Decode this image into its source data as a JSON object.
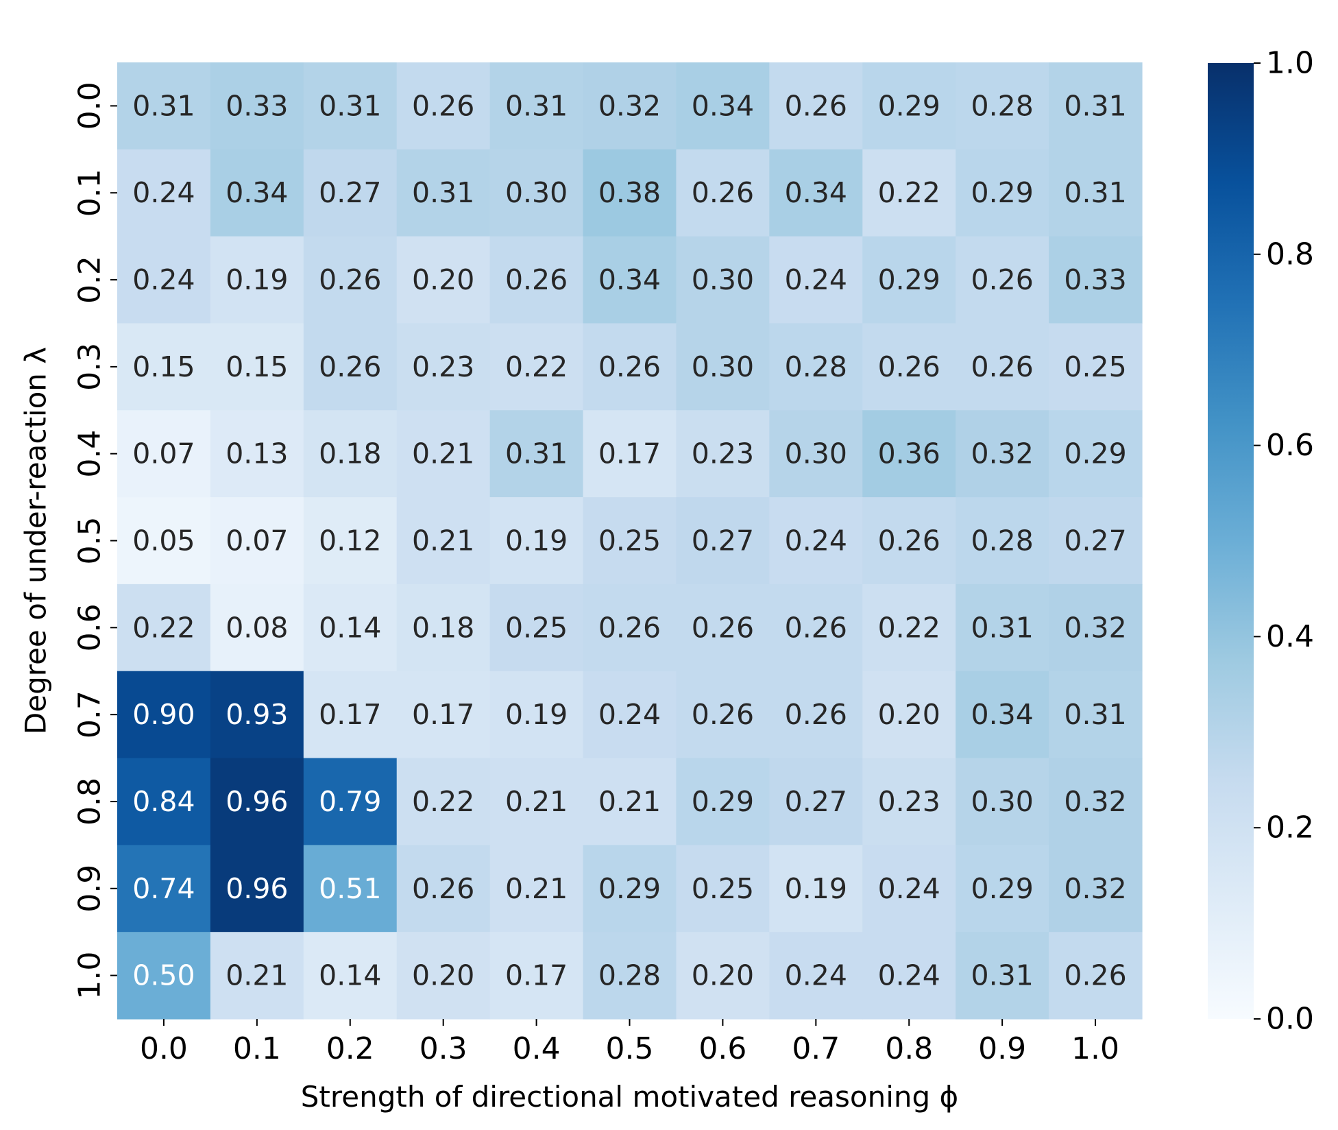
{
  "chart_data": {
    "type": "heatmap",
    "title": "",
    "xlabel": "Strength of directional motivated reasoning ϕ",
    "ylabel": "Degree of under-reaction λ",
    "x_categories": [
      "0.0",
      "0.1",
      "0.2",
      "0.3",
      "0.4",
      "0.5",
      "0.6",
      "0.7",
      "0.8",
      "0.9",
      "1.0"
    ],
    "y_categories": [
      "0.0",
      "0.1",
      "0.2",
      "0.3",
      "0.4",
      "0.5",
      "0.6",
      "0.7",
      "0.8",
      "0.9",
      "1.0"
    ],
    "values": [
      [
        0.31,
        0.33,
        0.31,
        0.26,
        0.31,
        0.32,
        0.34,
        0.26,
        0.29,
        0.28,
        0.31
      ],
      [
        0.24,
        0.34,
        0.27,
        0.31,
        0.3,
        0.38,
        0.26,
        0.34,
        0.22,
        0.29,
        0.31
      ],
      [
        0.24,
        0.19,
        0.26,
        0.2,
        0.26,
        0.34,
        0.3,
        0.24,
        0.29,
        0.26,
        0.33
      ],
      [
        0.15,
        0.15,
        0.26,
        0.23,
        0.22,
        0.26,
        0.3,
        0.28,
        0.26,
        0.26,
        0.25
      ],
      [
        0.07,
        0.13,
        0.18,
        0.21,
        0.31,
        0.17,
        0.23,
        0.3,
        0.36,
        0.32,
        0.29
      ],
      [
        0.05,
        0.07,
        0.12,
        0.21,
        0.19,
        0.25,
        0.27,
        0.24,
        0.26,
        0.28,
        0.27
      ],
      [
        0.22,
        0.08,
        0.14,
        0.18,
        0.25,
        0.26,
        0.26,
        0.26,
        0.22,
        0.31,
        0.32
      ],
      [
        0.9,
        0.93,
        0.17,
        0.17,
        0.19,
        0.24,
        0.26,
        0.26,
        0.2,
        0.34,
        0.31
      ],
      [
        0.84,
        0.96,
        0.79,
        0.22,
        0.21,
        0.21,
        0.29,
        0.27,
        0.23,
        0.3,
        0.32
      ],
      [
        0.74,
        0.96,
        0.51,
        0.26,
        0.21,
        0.29,
        0.25,
        0.19,
        0.24,
        0.29,
        0.32
      ],
      [
        0.5,
        0.21,
        0.14,
        0.2,
        0.17,
        0.28,
        0.2,
        0.24,
        0.24,
        0.31,
        0.26
      ]
    ],
    "value_format": "0.00",
    "colormap": "Blues",
    "colorbar": {
      "range": [
        0.0,
        1.0
      ],
      "ticks": [
        "0.0",
        "0.2",
        "0.4",
        "0.6",
        "0.8",
        "1.0"
      ]
    },
    "grid": false,
    "legend": "colorbar-right"
  }
}
